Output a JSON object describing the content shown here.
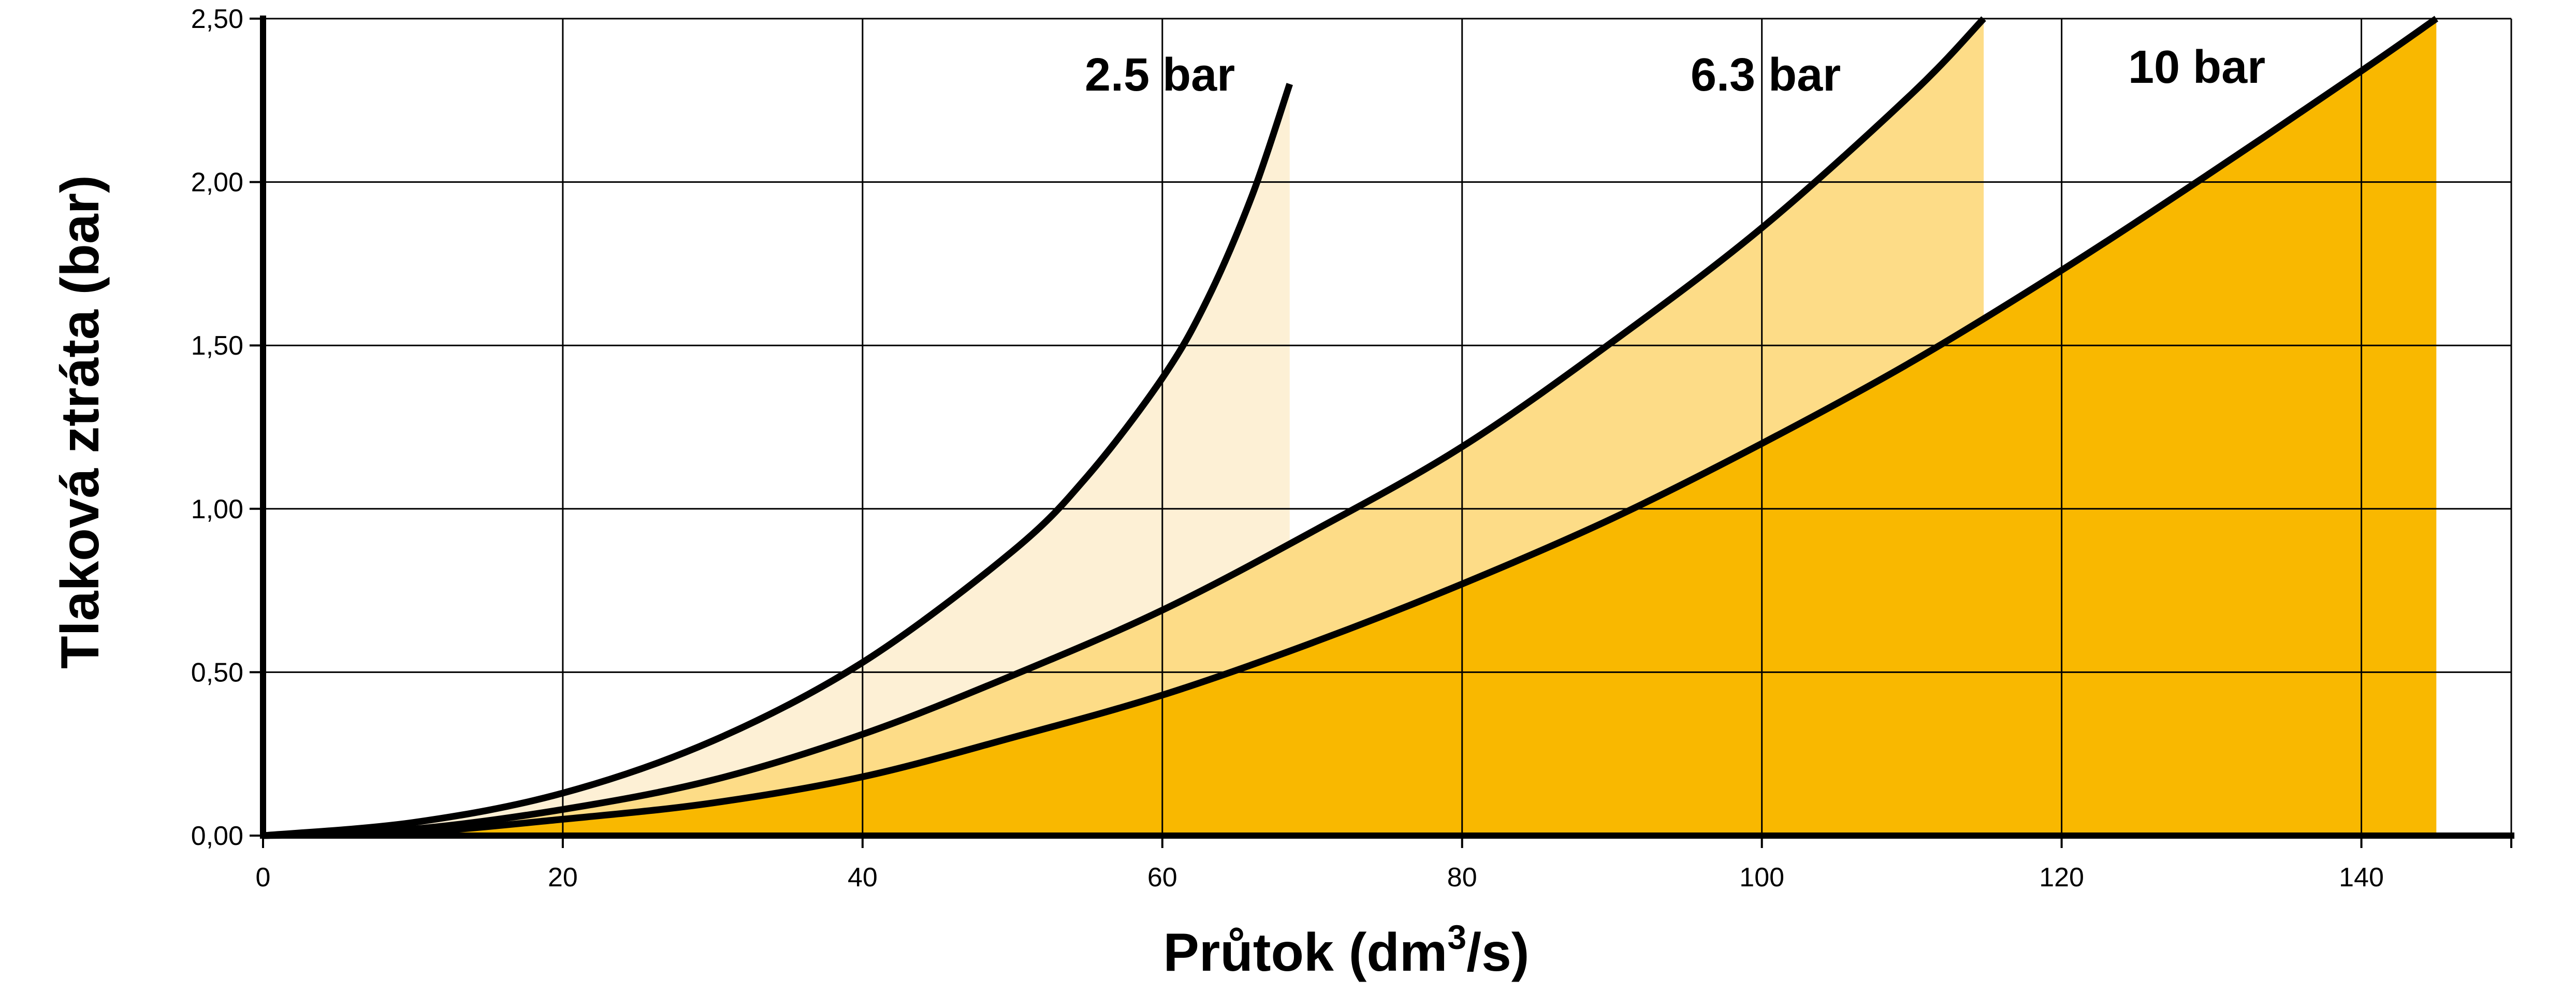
{
  "chart_data": {
    "type": "area",
    "xlabel": "Průtok (dm3/s)",
    "xlabel_parts": {
      "main": "Průtok (dm",
      "sup": "3",
      "tail": "/s)"
    },
    "ylabel": "Tlaková ztráta (bar)",
    "xlim": [
      0,
      150
    ],
    "ylim": [
      0,
      2.5
    ],
    "x_ticks": [
      0,
      20,
      40,
      60,
      80,
      100,
      120,
      140
    ],
    "x_tick_labels": [
      "0",
      "20",
      "40",
      "60",
      "80",
      "100",
      "120",
      "140"
    ],
    "y_ticks": [
      0,
      0.5,
      1.0,
      1.5,
      2.0,
      2.5
    ],
    "y_tick_labels": [
      "0,00",
      "0,50",
      "1,00",
      "1,50",
      "2,00",
      "2,50"
    ],
    "grid": true,
    "series": [
      {
        "name": "2.5 bar",
        "fill_color": "#FDF0D5",
        "x": [
          0,
          10,
          20,
          30,
          40,
          50,
          55,
          60,
          63,
          66,
          68.5
        ],
        "y": [
          0,
          0.04,
          0.13,
          0.29,
          0.53,
          0.87,
          1.1,
          1.4,
          1.64,
          1.96,
          2.3
        ]
      },
      {
        "name": "6.3 bar",
        "fill_color": "#FDDC87",
        "x": [
          0,
          10,
          20,
          30,
          40,
          50,
          60,
          70,
          80,
          90,
          100,
          110,
          114.8
        ],
        "y": [
          0,
          0.02,
          0.08,
          0.17,
          0.31,
          0.49,
          0.69,
          0.93,
          1.19,
          1.51,
          1.86,
          2.27,
          2.5
        ]
      },
      {
        "name": "10 bar",
        "fill_color": "#F9B800",
        "x": [
          0,
          10,
          20,
          30,
          40,
          50,
          60,
          70,
          80,
          90,
          100,
          110,
          120,
          130,
          140,
          145
        ],
        "y": [
          0,
          0.01,
          0.05,
          0.1,
          0.18,
          0.3,
          0.43,
          0.59,
          0.77,
          0.97,
          1.2,
          1.45,
          1.73,
          2.03,
          2.34,
          2.5
        ]
      }
    ]
  }
}
